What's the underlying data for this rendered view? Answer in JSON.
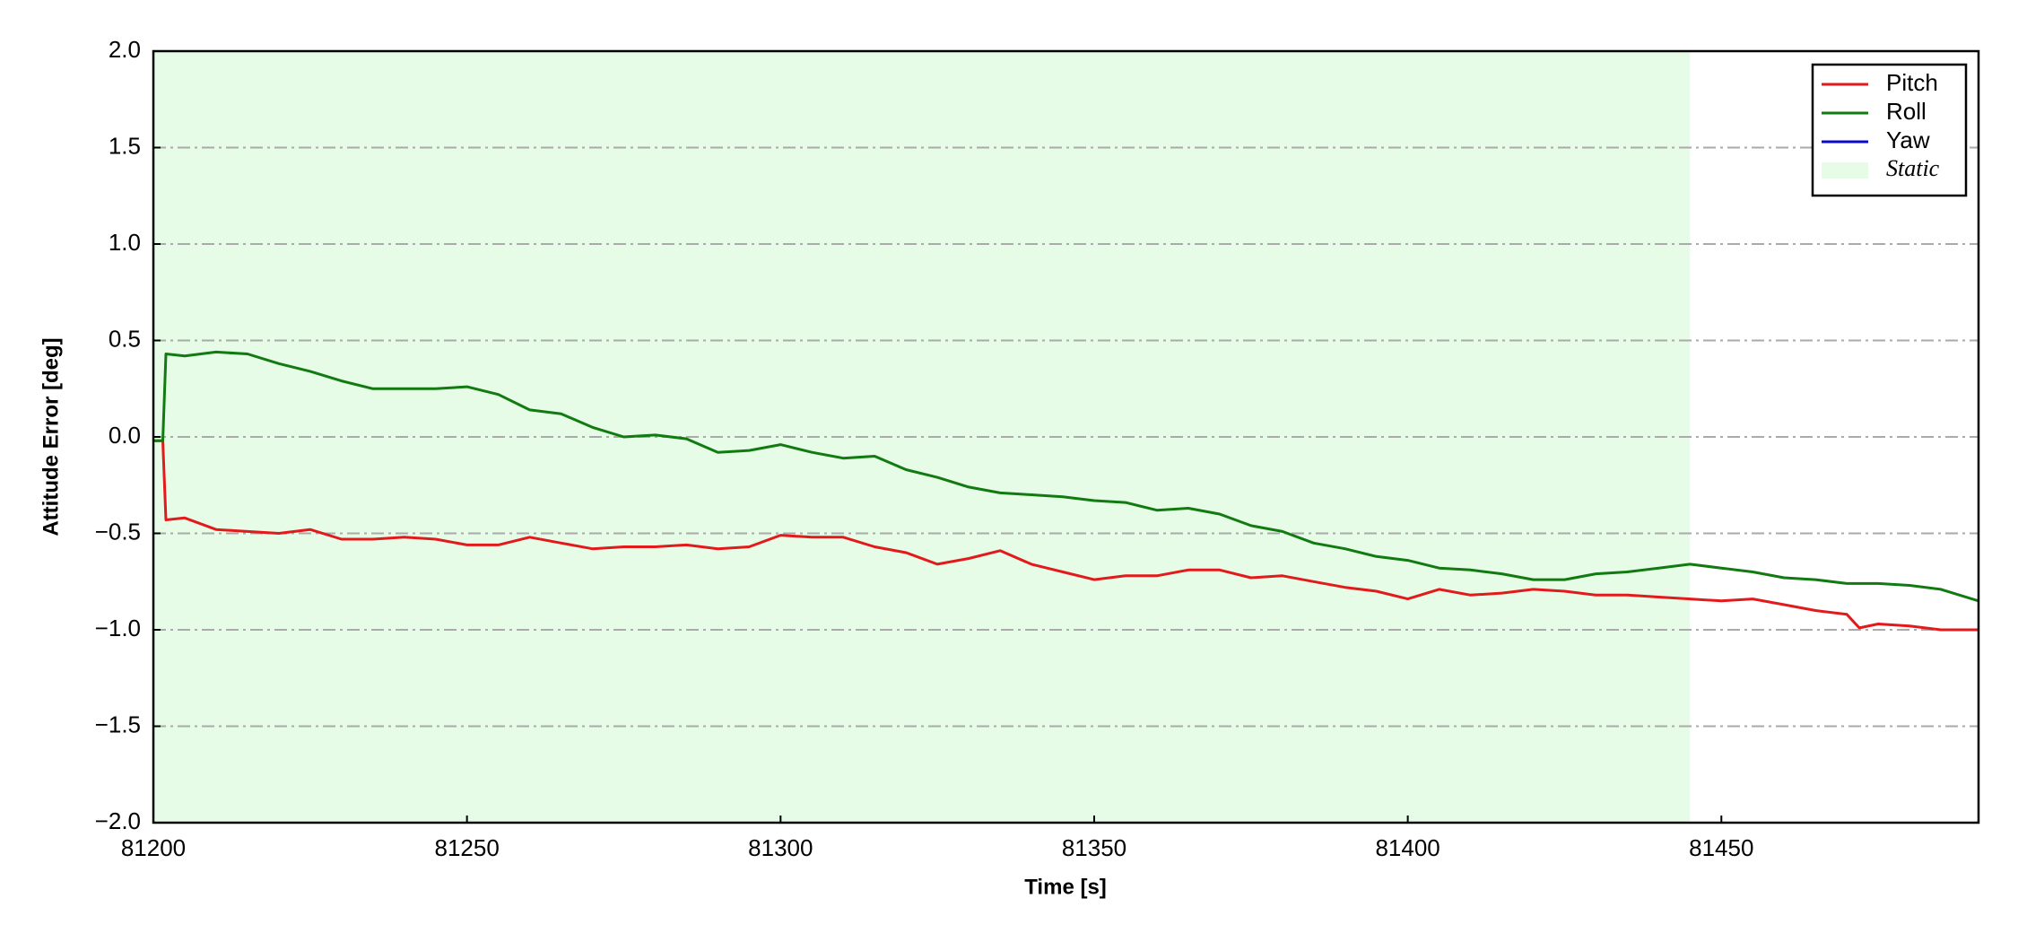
{
  "chart_data": {
    "type": "line",
    "xlabel": "Time [s]",
    "ylabel": "Attitude Error [deg]",
    "x": [
      81200,
      81201.5,
      81202,
      81205,
      81210,
      81215,
      81220,
      81225,
      81230,
      81235,
      81240,
      81245,
      81250,
      81255,
      81260,
      81265,
      81270,
      81275,
      81280,
      81285,
      81290,
      81295,
      81300,
      81305,
      81310,
      81315,
      81320,
      81325,
      81330,
      81335,
      81340,
      81345,
      81350,
      81355,
      81360,
      81365,
      81370,
      81375,
      81380,
      81385,
      81390,
      81395,
      81400,
      81405,
      81410,
      81415,
      81420,
      81425,
      81430,
      81435,
      81440,
      81445,
      81450,
      81455,
      81460,
      81465,
      81470,
      81472,
      81475,
      81480,
      81485,
      81491
    ],
    "series": [
      {
        "name": "Pitch",
        "color": "#e31a1c",
        "values": [
          -0.02,
          -0.02,
          -0.43,
          -0.42,
          -0.48,
          -0.49,
          -0.5,
          -0.48,
          -0.53,
          -0.53,
          -0.52,
          -0.53,
          -0.56,
          -0.56,
          -0.52,
          -0.55,
          -0.58,
          -0.57,
          -0.57,
          -0.56,
          -0.58,
          -0.57,
          -0.51,
          -0.52,
          -0.52,
          -0.57,
          -0.6,
          -0.66,
          -0.63,
          -0.59,
          -0.66,
          -0.7,
          -0.74,
          -0.72,
          -0.72,
          -0.69,
          -0.69,
          -0.73,
          -0.72,
          -0.75,
          -0.78,
          -0.8,
          -0.84,
          -0.79,
          -0.82,
          -0.81,
          -0.79,
          -0.8,
          -0.82,
          -0.82,
          -0.83,
          -0.84,
          -0.85,
          -0.84,
          -0.87,
          -0.9,
          -0.92,
          -0.99,
          -0.97,
          -0.98,
          -1.0,
          -1.0
        ]
      },
      {
        "name": "Roll",
        "color": "#117a11",
        "values": [
          -0.02,
          -0.02,
          0.43,
          0.42,
          0.44,
          0.43,
          0.38,
          0.34,
          0.29,
          0.25,
          0.25,
          0.25,
          0.26,
          0.22,
          0.14,
          0.12,
          0.05,
          0.0,
          0.01,
          -0.01,
          -0.08,
          -0.07,
          -0.04,
          -0.08,
          -0.11,
          -0.1,
          -0.17,
          -0.21,
          -0.26,
          -0.29,
          -0.3,
          -0.31,
          -0.33,
          -0.34,
          -0.38,
          -0.37,
          -0.4,
          -0.46,
          -0.49,
          -0.55,
          -0.58,
          -0.62,
          -0.64,
          -0.68,
          -0.69,
          -0.71,
          -0.74,
          -0.74,
          -0.71,
          -0.7,
          -0.68,
          -0.66,
          -0.68,
          -0.7,
          -0.73,
          -0.74,
          -0.76,
          -0.76,
          -0.76,
          -0.77,
          -0.79,
          -0.85
        ]
      },
      {
        "name": "Yaw",
        "color": "#0a0ac8",
        "values": [
          null,
          null,
          null,
          null,
          null,
          null,
          null,
          null,
          null,
          null,
          null,
          null,
          null,
          null,
          null,
          null,
          null,
          null,
          null,
          null,
          null,
          null,
          null,
          null,
          null,
          null,
          null,
          null,
          null,
          null,
          null,
          null,
          null,
          null,
          null,
          null,
          null,
          null,
          null,
          null,
          null,
          null,
          null,
          null,
          null,
          null,
          null,
          null,
          null,
          null,
          null,
          null,
          null,
          null,
          null,
          null,
          null,
          null,
          null,
          null,
          null,
          null
        ]
      }
    ],
    "static": {
      "label": "Static",
      "start": 81200,
      "end": 81445,
      "color": "#e6fce6"
    },
    "xlim": [
      81200,
      81491
    ],
    "xticks": [
      81200,
      81250,
      81300,
      81350,
      81400,
      81450
    ],
    "ylim": [
      -2,
      2
    ],
    "yticks": [
      {
        "value": -2,
        "label": "−2.0"
      },
      {
        "value": -1.5,
        "label": "−1.5"
      },
      {
        "value": -1,
        "label": "−1.0"
      },
      {
        "value": -0.5,
        "label": "−0.5"
      },
      {
        "value": 0,
        "label": "0.0"
      },
      {
        "value": 0.5,
        "label": "0.5"
      },
      {
        "value": 1,
        "label": "1.0"
      },
      {
        "value": 1.5,
        "label": "1.5"
      },
      {
        "value": 2,
        "label": "2.0"
      }
    ],
    "grid": true,
    "legend": "upper right"
  }
}
